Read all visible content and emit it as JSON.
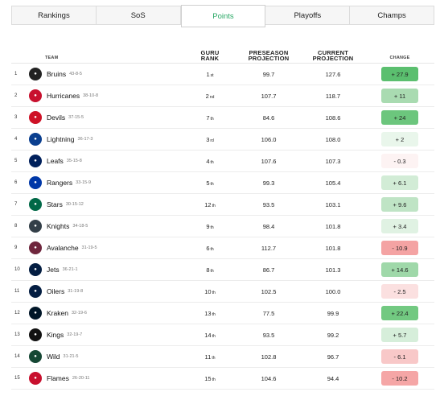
{
  "tabs": [
    {
      "label": "Rankings",
      "active": false
    },
    {
      "label": "SoS",
      "active": false
    },
    {
      "label": "Points",
      "active": true
    },
    {
      "label": "Playoffs",
      "active": false
    },
    {
      "label": "Champs",
      "active": false
    }
  ],
  "headers": {
    "team": "TEAM",
    "rank_line1": "GURU",
    "rank_line2": "RANK",
    "pre_line1": "PRESEASON",
    "pre_line2": "PROJECTION",
    "cur_line1": "CURRENT",
    "cur_line2": "PROJECTION",
    "change": "CHANGE"
  },
  "rows": [
    {
      "num": "1",
      "team": "Bruins",
      "record": "43-8-5",
      "rank": "1",
      "ord": "st",
      "pre": "99.7",
      "cur": "127.6",
      "change": "+ 27.9",
      "logo_color": "#222222",
      "logo_icon": "bruins-logo-icon",
      "badge_color": "#5bbf6f"
    },
    {
      "num": "2",
      "team": "Hurricanes",
      "record": "38-10-8",
      "rank": "2",
      "ord": "nd",
      "pre": "107.7",
      "cur": "118.7",
      "change": "+ 11",
      "logo_color": "#c8102e",
      "logo_icon": "hurricanes-logo-icon",
      "badge_color": "#a9dbb1"
    },
    {
      "num": "3",
      "team": "Devils",
      "record": "37-15-5",
      "rank": "7",
      "ord": "th",
      "pre": "84.6",
      "cur": "108.6",
      "change": "+ 24",
      "logo_color": "#ce1126",
      "logo_icon": "devils-logo-icon",
      "badge_color": "#6cc67d"
    },
    {
      "num": "4",
      "team": "Lightning",
      "record": "36-17-3",
      "rank": "3",
      "ord": "rd",
      "pre": "106.0",
      "cur": "108.0",
      "change": "+ 2",
      "logo_color": "#0a3f8f",
      "logo_icon": "lightning-logo-icon",
      "badge_color": "#e9f6eb"
    },
    {
      "num": "5",
      "team": "Leafs",
      "record": "35-15-8",
      "rank": "4",
      "ord": "th",
      "pre": "107.6",
      "cur": "107.3",
      "change": "- 0.3",
      "logo_color": "#00205b",
      "logo_icon": "leafs-logo-icon",
      "badge_color": "#fdf3f3"
    },
    {
      "num": "6",
      "team": "Rangers",
      "record": "33-15-9",
      "rank": "5",
      "ord": "th",
      "pre": "99.3",
      "cur": "105.4",
      "change": "+ 6.1",
      "logo_color": "#0038a8",
      "logo_icon": "rangers-logo-icon",
      "badge_color": "#d2ecd6"
    },
    {
      "num": "7",
      "team": "Stars",
      "record": "30-15-12",
      "rank": "12",
      "ord": "th",
      "pre": "93.5",
      "cur": "103.1",
      "change": "+ 9.6",
      "logo_color": "#006847",
      "logo_icon": "stars-logo-icon",
      "badge_color": "#bfe4c5"
    },
    {
      "num": "8",
      "team": "Knights",
      "record": "34-18-5",
      "rank": "9",
      "ord": "th",
      "pre": "98.4",
      "cur": "101.8",
      "change": "+ 3.4",
      "logo_color": "#333f48",
      "logo_icon": "knights-logo-icon",
      "badge_color": "#e0f2e3"
    },
    {
      "num": "9",
      "team": "Avalanche",
      "record": "31-19-5",
      "rank": "6",
      "ord": "th",
      "pre": "112.7",
      "cur": "101.8",
      "change": "- 10.9",
      "logo_color": "#6f263d",
      "logo_icon": "avalanche-logo-icon",
      "badge_color": "#f4a3a3"
    },
    {
      "num": "10",
      "team": "Jets",
      "record": "36-21-1",
      "rank": "8",
      "ord": "th",
      "pre": "86.7",
      "cur": "101.3",
      "change": "+ 14.6",
      "logo_color": "#041e42",
      "logo_icon": "jets-logo-icon",
      "badge_color": "#9fd8a9"
    },
    {
      "num": "11",
      "team": "Oilers",
      "record": "31-19-8",
      "rank": "10",
      "ord": "th",
      "pre": "102.5",
      "cur": "100.0",
      "change": "- 2.5",
      "logo_color": "#041e42",
      "logo_icon": "oilers-logo-icon",
      "badge_color": "#fbe0e0"
    },
    {
      "num": "12",
      "team": "Kraken",
      "record": "32-19-6",
      "rank": "13",
      "ord": "th",
      "pre": "77.5",
      "cur": "99.9",
      "change": "+ 22.4",
      "logo_color": "#001628",
      "logo_icon": "kraken-logo-icon",
      "badge_color": "#72c981"
    },
    {
      "num": "13",
      "team": "Kings",
      "record": "32-19-7",
      "rank": "14",
      "ord": "th",
      "pre": "93.5",
      "cur": "99.2",
      "change": "+ 5.7",
      "logo_color": "#111111",
      "logo_icon": "kings-logo-icon",
      "badge_color": "#d6eeda"
    },
    {
      "num": "14",
      "team": "Wild",
      "record": "31-21-5",
      "rank": "11",
      "ord": "th",
      "pre": "102.8",
      "cur": "96.7",
      "change": "- 6.1",
      "logo_color": "#154734",
      "logo_icon": "wild-logo-icon",
      "badge_color": "#f8c8c8"
    },
    {
      "num": "15",
      "team": "Flames",
      "record": "26-20-11",
      "rank": "15",
      "ord": "th",
      "pre": "104.6",
      "cur": "94.4",
      "change": "- 10.2",
      "logo_color": "#c8102e",
      "logo_icon": "flames-logo-icon",
      "badge_color": "#f5a6a6"
    }
  ]
}
